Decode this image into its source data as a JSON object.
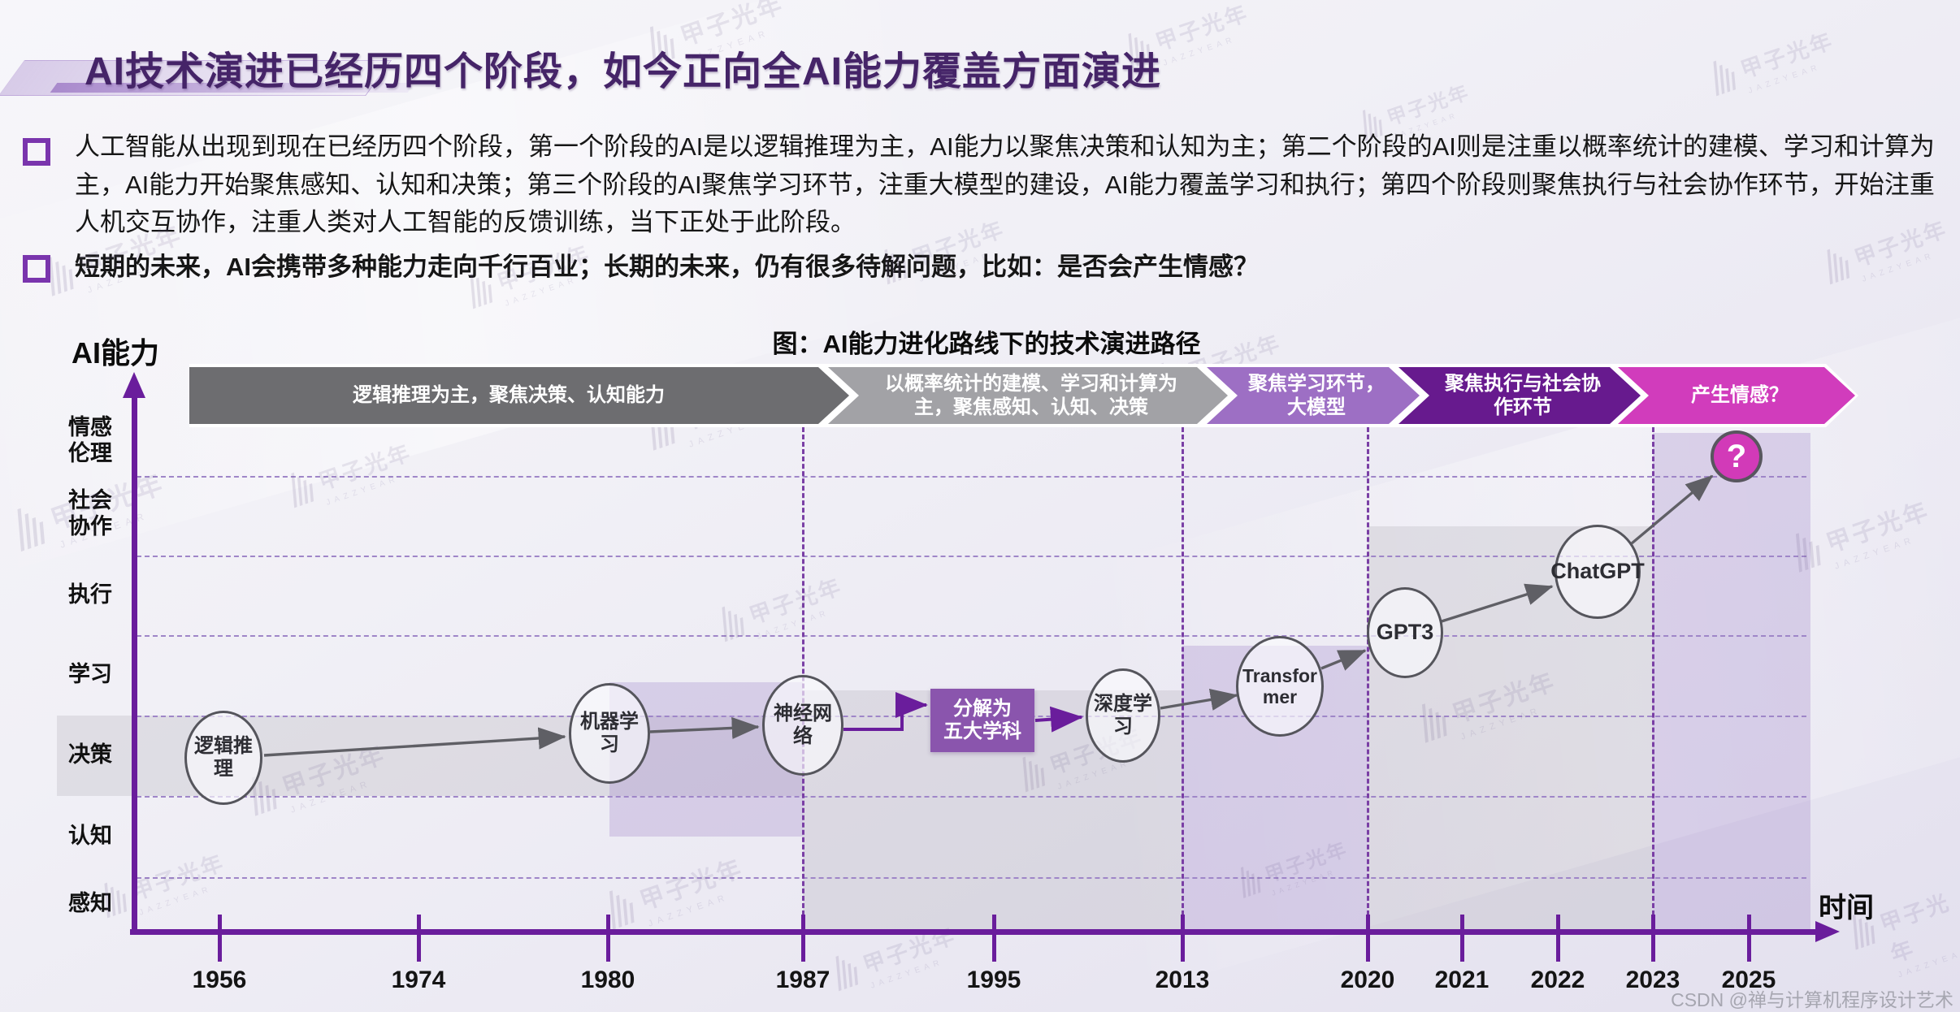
{
  "slide": {
    "title": "AI技术演进已经历四个阶段，如今正向全AI能力覆盖方面演进",
    "bullets": [
      {
        "text": "人工智能从出现到现在已经历四个阶段，第一个阶段的AI是以逻辑推理为主，AI能力以聚焦决策和认知为主；第二个阶段的AI则是注重以概率统计的建模、学习和计算为主，AI能力开始聚焦感知、认知和决策；第三个阶段的AI聚焦学习环节，注重大模型的建设，AI能力覆盖学习和执行；第四个阶段则聚焦执行与社会协作环节，开始注重人机交互协作，注重人类对人工智能的反馈训练，当下正处于此阶段。"
      },
      {
        "text": "短期的未来，AI会携带多种能力走向千行百业；长期的未来，仍有很多待解问题，比如：是否会产生情感？"
      }
    ],
    "watermark": {
      "text": "甲子光年",
      "subtext": "JAZZYEAR"
    },
    "credit": "CSDN @禅与计算机程序设计艺术"
  },
  "chart_data": {
    "type": "timeline-diagram",
    "title": "图：AI能力进化路线下的技术演进路径",
    "y_axis_label": "AI能力",
    "x_axis_label": "时间",
    "y_categories": [
      "情感伦理",
      "社会协作",
      "执行",
      "学习",
      "决策",
      "认知",
      "感知"
    ],
    "x_ticks": [
      "1956",
      "1974",
      "1980",
      "1987",
      "1995",
      "2013",
      "2020",
      "2021",
      "2022",
      "2023",
      "2025"
    ],
    "x_dashed_gridlines": [
      "1987",
      "2013",
      "2020",
      "2023"
    ],
    "axis_color": "#6a1d9c",
    "stages": [
      {
        "label": "逻辑推理为主，聚焦决策、认知能力",
        "color": "#6d6d70"
      },
      {
        "label": "以概率统计的建模、学习和计算为主，聚焦感知、认知、决策",
        "color": "#a2a2a6"
      },
      {
        "label": "聚焦学习环节，大模型",
        "color": "#9d6fc4"
      },
      {
        "label": "聚焦执行与社会协作环节",
        "color": "#671a8e"
      },
      {
        "label": "产生情感？",
        "color": "#d13cbc"
      }
    ],
    "nodes": [
      {
        "label": "逻辑推理",
        "year": "1956",
        "capability": "决策",
        "shape": "ellipse"
      },
      {
        "label": "机器学习",
        "year": "1980",
        "capability": "决策/学习",
        "shape": "ellipse"
      },
      {
        "label": "神经网络",
        "year": "1987",
        "capability": "决策/学习",
        "shape": "ellipse"
      },
      {
        "label": "分解为五大学科",
        "display_lines": [
          "分解为",
          "五大学科"
        ],
        "year": "1995",
        "capability": "学习",
        "shape": "rect",
        "color": "#8a55ad"
      },
      {
        "label": "深度学习",
        "year": "1995-2013",
        "capability": "学习",
        "shape": "ellipse"
      },
      {
        "label": "Transformer",
        "year": "2013-2020",
        "capability": "学习",
        "shape": "ellipse"
      },
      {
        "label": "GPT3",
        "year": "2020",
        "capability": "执行",
        "shape": "ellipse"
      },
      {
        "label": "ChatGPT",
        "year": "2022",
        "capability": "执行/社会协作",
        "shape": "ellipse"
      },
      {
        "label": "?",
        "year": "2025",
        "capability": "情感伦理",
        "shape": "qmark",
        "color": "#d23ab8"
      }
    ],
    "highlight_bands": [
      {
        "row": "决策",
        "x_from": "start",
        "x_to": "1987",
        "tone": "gray"
      },
      {
        "x_from": "1980",
        "x_to": "1987",
        "tone": "purple"
      },
      {
        "x_from": "1987",
        "x_to": "2013",
        "tone": "gray"
      },
      {
        "x_from": "2013",
        "x_to": "2020",
        "tone": "purple"
      },
      {
        "x_from": "2020",
        "x_to": "2023",
        "tone": "gray"
      },
      {
        "x_from": "2023",
        "x_to": "beyond-2025",
        "tone": "purple"
      }
    ]
  }
}
